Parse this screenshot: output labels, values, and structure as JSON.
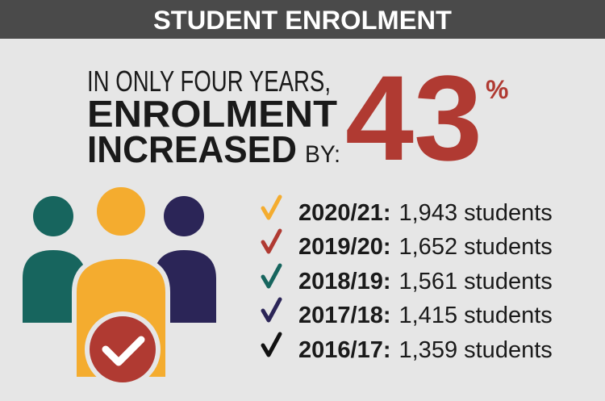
{
  "header": {
    "title": "STUDENT ENROLMENT"
  },
  "headline": {
    "line1": "IN ONLY FOUR YEARS,",
    "line2": "ENROLMENT",
    "line3": "INCREASED",
    "by": "BY:",
    "figure": "43",
    "unit": "%"
  },
  "list": [
    {
      "year": "2020/21:",
      "count": "1,943 students"
    },
    {
      "year": "2019/20:",
      "count": "1,652 students"
    },
    {
      "year": "2018/19:",
      "count": "1,561 students"
    },
    {
      "year": "2017/18:",
      "count": "1,415 students"
    },
    {
      "year": "2016/17:",
      "count": "1,359 students"
    }
  ]
}
